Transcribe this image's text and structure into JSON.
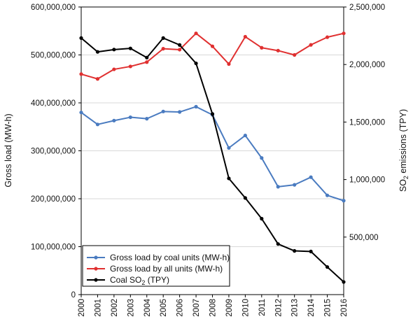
{
  "chart_data": {
    "type": "line",
    "categories": [
      "2000",
      "2001",
      "2002",
      "2003",
      "2004",
      "2005",
      "2006",
      "2007",
      "2008",
      "2009",
      "2010",
      "2011",
      "2012",
      "2013",
      "2014",
      "2015",
      "2016"
    ],
    "y_left": {
      "label": "Gross load (MW-h)",
      "lim": [
        0,
        600000000
      ],
      "ticks": [
        0,
        100000000,
        200000000,
        300000000,
        400000000,
        500000000,
        600000000
      ],
      "tick_labels": [
        "0",
        "100,000,000",
        "200,000,000",
        "300,000,000",
        "400,000,000",
        "500,000,000",
        "600,000,000"
      ]
    },
    "y_right": {
      "label_main": "SO",
      "label_sub": "2",
      "label_rest": " emissions (TPY)",
      "lim": [
        0,
        2500000
      ],
      "ticks": [
        500000,
        1000000,
        1500000,
        2000000,
        2500000
      ],
      "tick_labels": [
        "500,000",
        "1,000,000",
        "1,500,000",
        "2,000,000",
        "2,500,000"
      ]
    },
    "series": [
      {
        "name": "Gross load by coal units (MW-h)",
        "axis": "left",
        "color": "#4a7bc0",
        "values": [
          380000000,
          355000000,
          363000000,
          370000000,
          367000000,
          382000000,
          381000000,
          392000000,
          375000000,
          306000000,
          332000000,
          285000000,
          225000000,
          229000000,
          245000000,
          207000000,
          196000000
        ]
      },
      {
        "name": "Gross load by all units (MW-h)",
        "axis": "left",
        "color": "#e03030",
        "values": [
          460000000,
          450000000,
          470000000,
          476000000,
          485000000,
          513000000,
          511000000,
          545000000,
          518000000,
          481000000,
          538000000,
          515000000,
          509000000,
          500000000,
          521000000,
          537000000,
          545000000
        ]
      },
      {
        "name_main": "Coal SO",
        "name_sub": "2",
        "name_rest": " (TPY)",
        "axis": "right",
        "color": "#000000",
        "values": [
          2230000,
          2110000,
          2130000,
          2140000,
          2060000,
          2230000,
          2170000,
          2010000,
          1570000,
          1010000,
          840000,
          660000,
          440000,
          380000,
          375000,
          240000,
          110000
        ]
      }
    ],
    "grid": "horizontal",
    "legend_placement": "bottom-left"
  }
}
